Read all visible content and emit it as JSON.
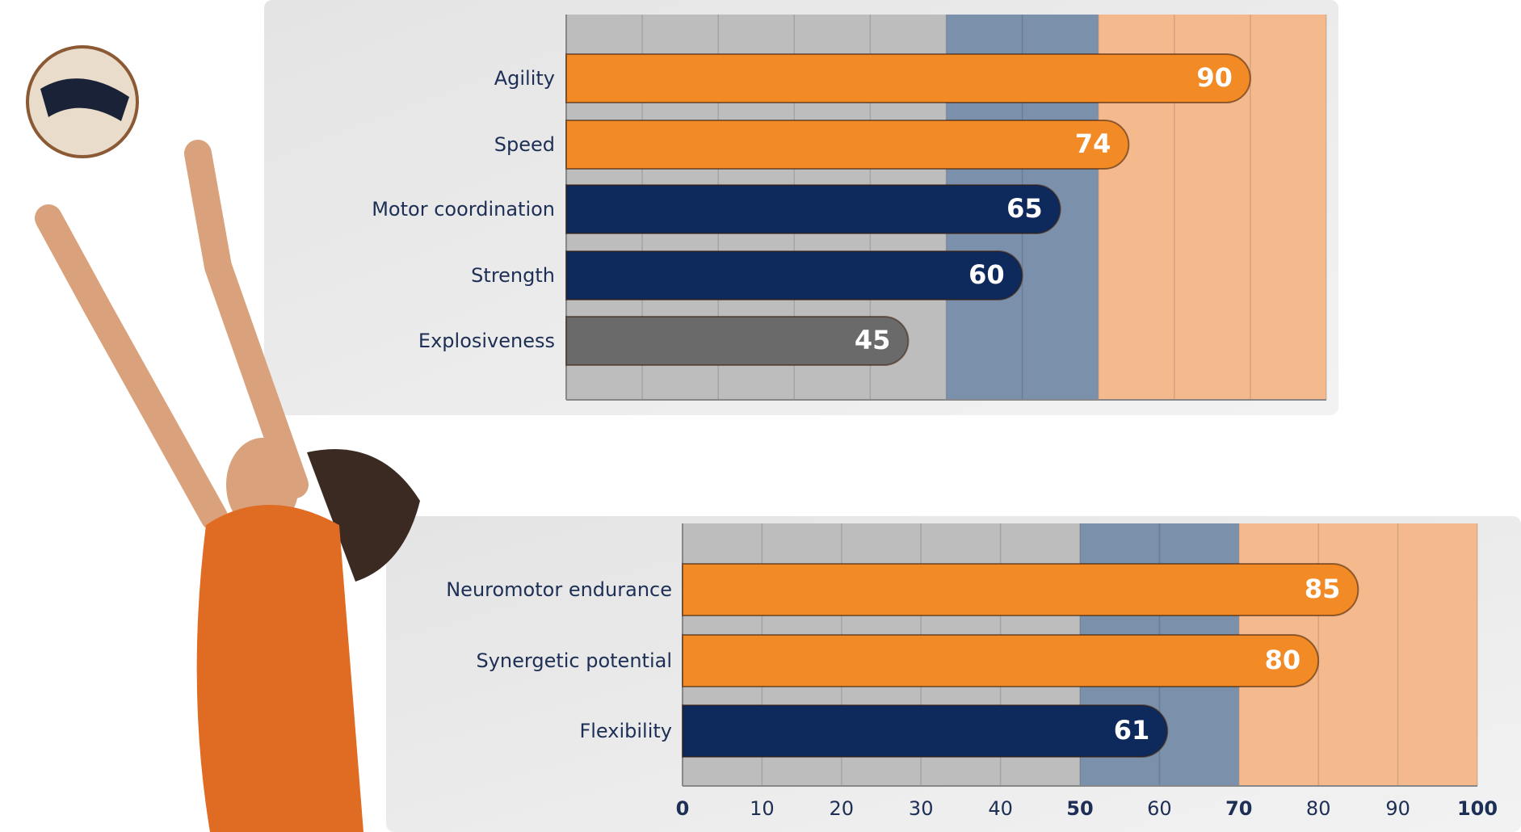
{
  "chart_data": [
    {
      "type": "bar",
      "orientation": "horizontal",
      "categories": [
        "Agility",
        "Speed",
        "Motor coordination",
        "Strength",
        "Explosiveness"
      ],
      "values": [
        90,
        74,
        65,
        60,
        45
      ],
      "colors": [
        "#f28a26",
        "#f28a26",
        "#0e2a5c",
        "#0e2a5c",
        "#6a6a6a"
      ],
      "xlim": [
        0,
        100
      ],
      "xticks": [
        0,
        10,
        20,
        30,
        40,
        50,
        60,
        70,
        80,
        90,
        100
      ],
      "show_tick_labels": false,
      "grid": true,
      "bands": [
        {
          "from": 0,
          "to": 50,
          "color": "#bdbdbd"
        },
        {
          "from": 50,
          "to": 70,
          "color": "#7b90aa"
        },
        {
          "from": 70,
          "to": 100,
          "color": "#f4ba8e"
        }
      ]
    },
    {
      "type": "bar",
      "orientation": "horizontal",
      "categories": [
        "Neuromotor endurance",
        "Synergetic potential",
        "Flexibility"
      ],
      "values": [
        85,
        80,
        61
      ],
      "colors": [
        "#f28a26",
        "#f28a26",
        "#0e2a5c"
      ],
      "xlim": [
        0,
        100
      ],
      "xticks": [
        0,
        10,
        20,
        30,
        40,
        50,
        60,
        70,
        80,
        90,
        100
      ],
      "show_tick_labels": true,
      "grid": true,
      "bands": [
        {
          "from": 0,
          "to": 50,
          "color": "#bdbdbd"
        },
        {
          "from": 50,
          "to": 70,
          "color": "#7b90aa"
        },
        {
          "from": 70,
          "to": 100,
          "color": "#f4ba8e"
        }
      ]
    }
  ]
}
